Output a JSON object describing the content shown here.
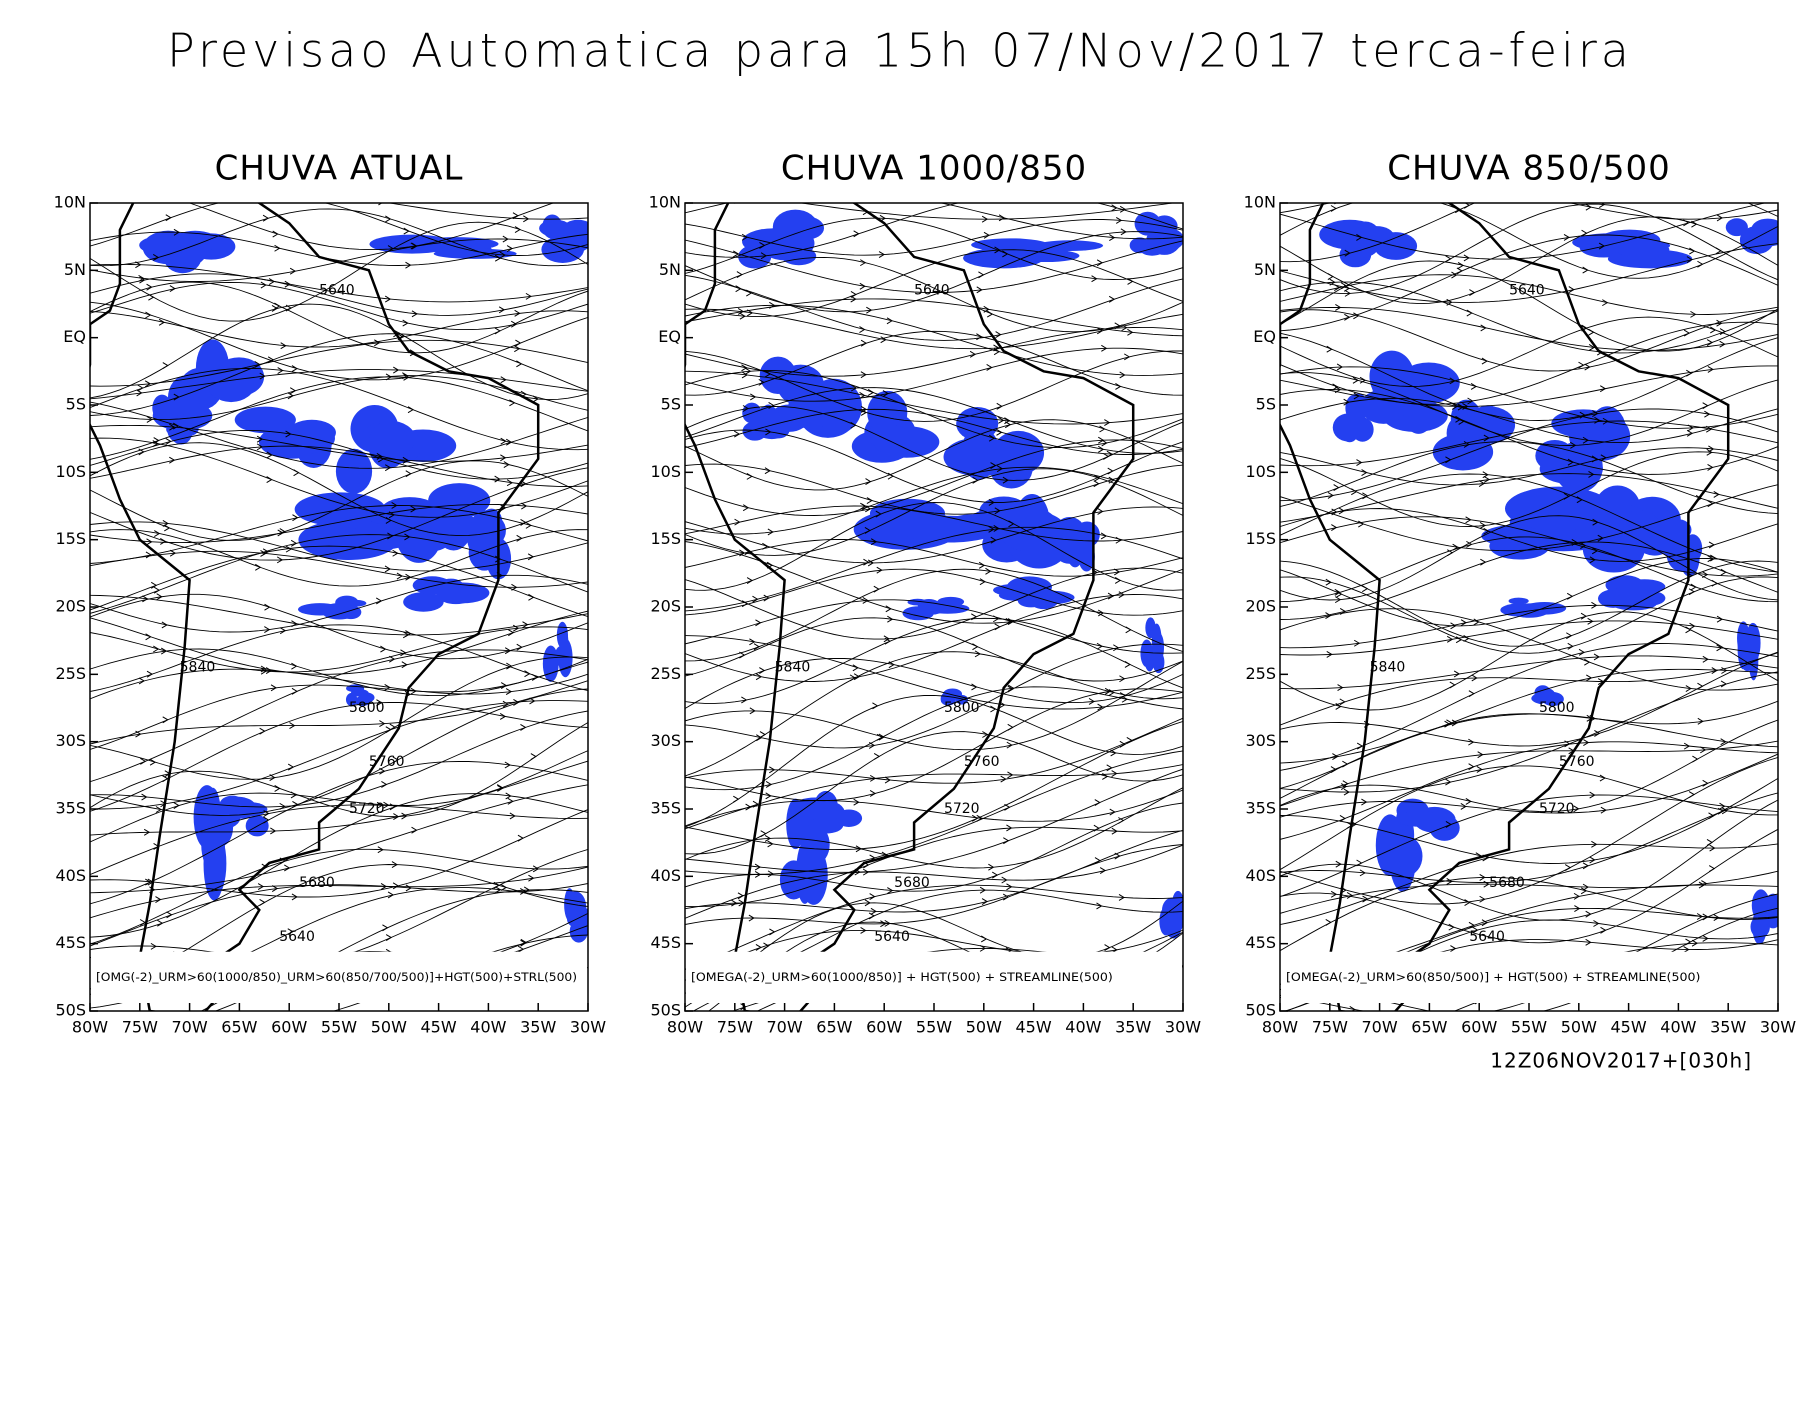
{
  "header": {
    "title": "Previsao Automatica para 15h 07/Nov/2017 terca-feira"
  },
  "lat_labels": [
    "10N",
    "5N",
    "EQ",
    "5S",
    "10S",
    "15S",
    "20S",
    "25S",
    "30S",
    "35S",
    "40S",
    "45S",
    "50S"
  ],
  "lon_labels": [
    "80W",
    "75W",
    "70W",
    "65W",
    "60W",
    "55W",
    "50W",
    "45W",
    "40W",
    "35W",
    "30W"
  ],
  "panels": [
    {
      "title": "CHUVA ATUAL",
      "legend": "[OMG(-2)_URM>60(1000/850)_URM>60(850/700/500)]+HGT(500)+STRL(500)",
      "contour_labels": [
        "5640",
        "5840",
        "5800",
        "5760",
        "5720",
        "5680",
        "5640"
      ]
    },
    {
      "title": "CHUVA 1000/850",
      "legend": "[OMEGA(-2)_URM>60(1000/850)] + HGT(500) + STREAMLINE(500)",
      "contour_labels": [
        "5640",
        "5840",
        "5800",
        "5760",
        "5720",
        "5680",
        "5640"
      ]
    },
    {
      "title": "CHUVA 850/500",
      "legend": "[OMEGA(-2)_URM>60(850/500)] + HGT(500) + STREAMLINE(500)",
      "contour_labels": [
        "5640",
        "5840",
        "5800",
        "5760",
        "5720",
        "5680",
        "5640"
      ]
    }
  ],
  "footer": "12Z06NOV2017+[030h]"
}
